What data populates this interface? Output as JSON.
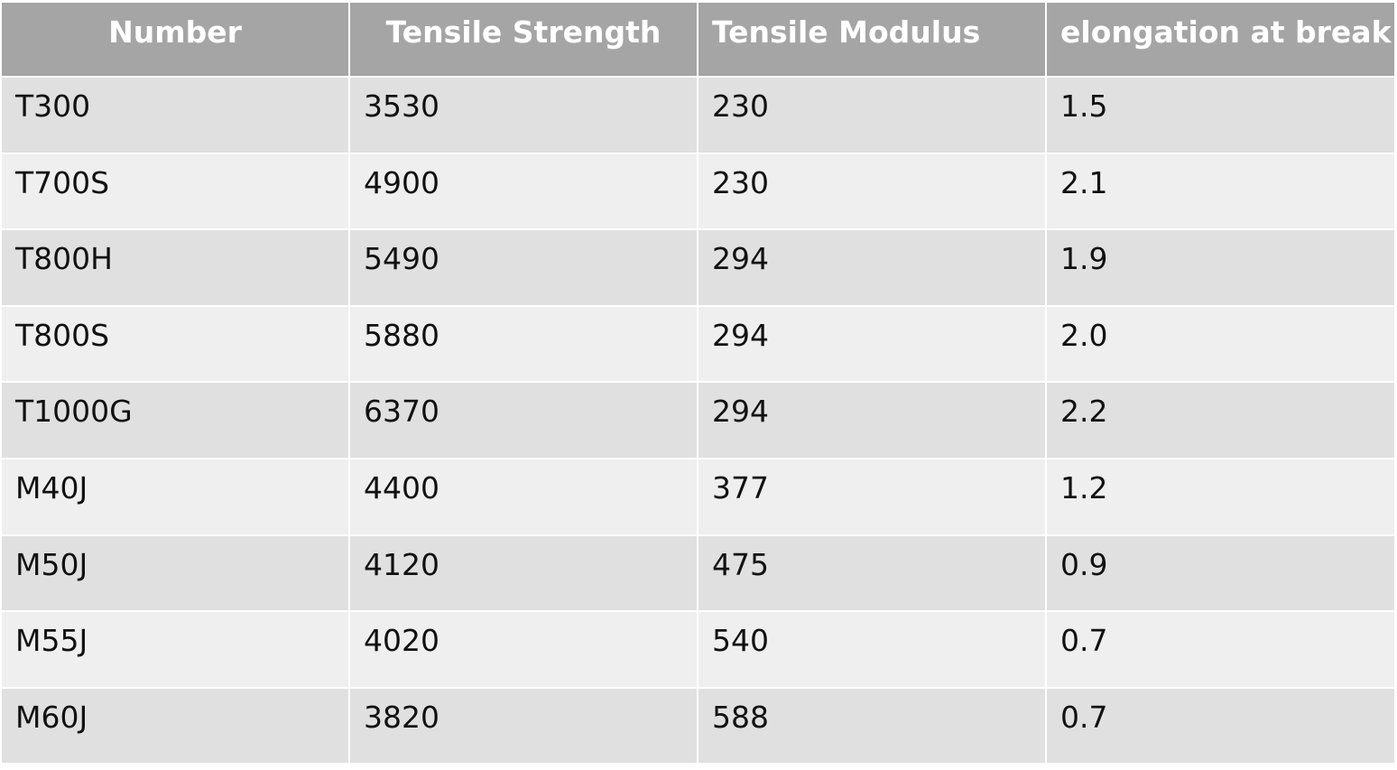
{
  "table": {
    "header": [
      "Number",
      "Tensile Strength",
      "Tensile Modulus",
      "elongation at break"
    ],
    "rows": [
      [
        "T300",
        "3530",
        "230",
        "1.5"
      ],
      [
        "T700S",
        "4900",
        "230",
        "2.1"
      ],
      [
        "T800H",
        "5490",
        "294",
        "1.9"
      ],
      [
        "T800S",
        "5880",
        "294",
        "2.0"
      ],
      [
        "T1000G",
        "6370",
        "294",
        "2.2"
      ],
      [
        "M40J",
        "4400",
        "377",
        "1.2"
      ],
      [
        "M50J",
        "4120",
        "475",
        "0.9"
      ],
      [
        "M55J",
        "4020",
        "540",
        "0.7"
      ],
      [
        "M60J",
        "3820",
        "588",
        "0.7"
      ]
    ]
  }
}
